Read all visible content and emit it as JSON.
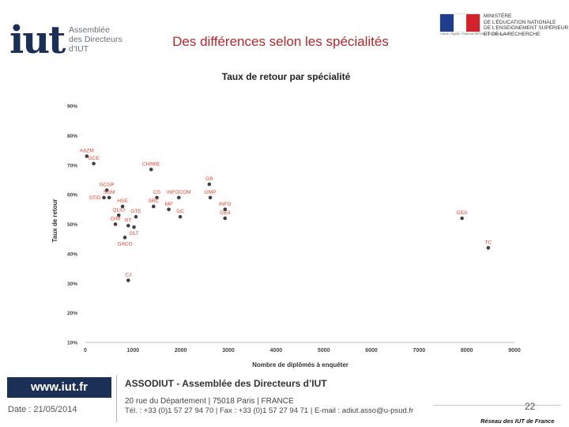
{
  "header": {
    "logo_mark": "iut",
    "logo_lines": [
      "Assemblée",
      "des Directeurs",
      "d’IUT"
    ],
    "slide_title": "Des différences selon les spécialités",
    "ministry_motto": "Liberté • Égalité • Fraternité  RÉPUBLIQUE FRANÇAISE",
    "ministry_lines": [
      "MINISTÈRE",
      "DE L’ÉDUCATION NATIONALE",
      "DE L’ENSEIGNEMENT SUPÉRIEUR",
      "ET DE LA RECHERCHE"
    ]
  },
  "chart_data": {
    "type": "scatter",
    "title": "Taux de retour par spécialité",
    "xlabel": "Nombre de diplômés à enquêter",
    "ylabel": "Taux de retour",
    "xlim": [
      0,
      9000
    ],
    "ylim": [
      10,
      90
    ],
    "x_ticks": [
      0,
      1000,
      2000,
      3000,
      4000,
      5000,
      6000,
      7000,
      8000,
      9000
    ],
    "y_ticks": [
      10,
      20,
      30,
      40,
      50,
      60,
      70,
      80,
      90
    ],
    "y_tick_labels": [
      "10%",
      "20%",
      "30%",
      "40%",
      "50%",
      "60%",
      "70%",
      "80%",
      "90%"
    ],
    "grid": false,
    "point_color": "#404040",
    "label_color": "#e8442e",
    "points": [
      {
        "label": "AAZM",
        "x": 30,
        "y": 73,
        "anchor": "above"
      },
      {
        "label": "GCE",
        "x": 175,
        "y": 70.5,
        "anchor": "above"
      },
      {
        "label": "CHIMIE",
        "x": 1380,
        "y": 68.5,
        "anchor": "above"
      },
      {
        "label": "GB",
        "x": 2600,
        "y": 63.5,
        "anchor": "above"
      },
      {
        "label": "GCGP",
        "x": 450,
        "y": 61.5,
        "anchor": "above"
      },
      {
        "label": "SGM",
        "x": 500,
        "y": 59,
        "anchor": "above"
      },
      {
        "label": "STID",
        "x": 390,
        "y": 59,
        "anchor": "left"
      },
      {
        "label": "CS",
        "x": 1500,
        "y": 59,
        "anchor": "above"
      },
      {
        "label": "INFOCOM",
        "x": 1960,
        "y": 59,
        "anchor": "above"
      },
      {
        "label": "GMP",
        "x": 2620,
        "y": 59,
        "anchor": "above"
      },
      {
        "label": "HSE",
        "x": 780,
        "y": 56,
        "anchor": "above"
      },
      {
        "label": "SRC",
        "x": 1430,
        "y": 56,
        "anchor": "above"
      },
      {
        "label": "MP",
        "x": 1750,
        "y": 55,
        "anchor": "above"
      },
      {
        "label": "INFO",
        "x": 2930,
        "y": 55,
        "anchor": "above"
      },
      {
        "label": "QLIO",
        "x": 700,
        "y": 53,
        "anchor": "above"
      },
      {
        "label": "GTE",
        "x": 1060,
        "y": 52.5,
        "anchor": "above"
      },
      {
        "label": "GC",
        "x": 1990,
        "y": 52.5,
        "anchor": "above"
      },
      {
        "label": "GEII",
        "x": 2930,
        "y": 52,
        "anchor": "above"
      },
      {
        "label": "GIM",
        "x": 630,
        "y": 50,
        "anchor": "above"
      },
      {
        "label": "RT",
        "x": 900,
        "y": 49.5,
        "anchor": "above"
      },
      {
        "label": "GLT",
        "x": 1020,
        "y": 49,
        "anchor": "below"
      },
      {
        "label": "GACO",
        "x": 830,
        "y": 45.5,
        "anchor": "below"
      },
      {
        "label": "GEA",
        "x": 7900,
        "y": 52,
        "anchor": "above"
      },
      {
        "label": "TC",
        "x": 8450,
        "y": 42,
        "anchor": "above"
      },
      {
        "label": "CJ",
        "x": 900,
        "y": 31,
        "anchor": "above"
      }
    ]
  },
  "footer": {
    "url": "www.iut.fr",
    "date": "Date : 21/05/2014",
    "org": "ASSODIUT - Assemblée des Directeurs d’IUT",
    "address": "20 rue du Département | 75018 Paris | FRANCE",
    "contact": "Tél. : +33 (0)1 57 27 94 70 | Fax : +33 (0)1 57 27 94 71 | E-mail : adiut.asso@u-psud.fr",
    "page_number": "22",
    "network": "Réseau des IUT de France"
  },
  "colors": {
    "title_red": "#b3282d",
    "navy": "#1c2f56",
    "flag_blue": "#1f3f8c",
    "flag_white": "#ffffff",
    "flag_red": "#d2232a"
  }
}
